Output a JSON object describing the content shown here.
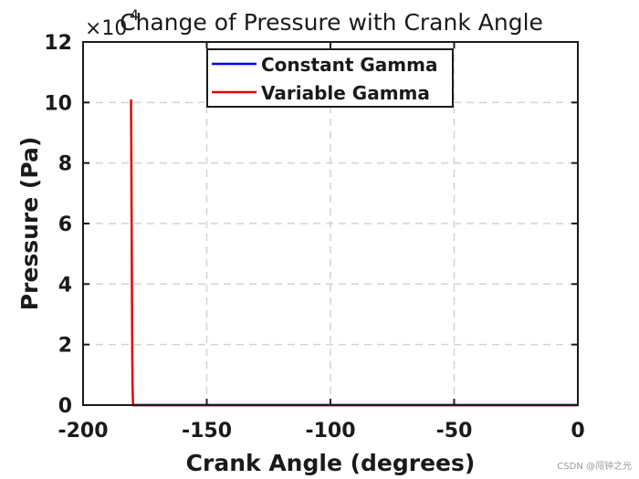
{
  "watermark": "CSDN @闯钟之光",
  "chart_data": {
    "type": "line",
    "title": "Change of Pressure with Crank Angle",
    "xlabel": "Crank Angle (degrees)",
    "ylabel": "Pressure (Pa)",
    "y_multiplier": "×10",
    "y_exponent": "4",
    "xlim": [
      -200,
      0
    ],
    "ylim": [
      0,
      12
    ],
    "xticks": [
      -200,
      -150,
      -100,
      -50,
      0
    ],
    "yticks": [
      0,
      2,
      4,
      6,
      8,
      10,
      12
    ],
    "grid": true,
    "legend_position": "top-center",
    "series": [
      {
        "name": "Constant Gamma",
        "color": "#0000e6",
        "x": [
          -180,
          0
        ],
        "y": [
          0,
          0
        ]
      },
      {
        "name": "Variable Gamma",
        "color": "#e60000",
        "x": [
          -180.6,
          -180.6,
          -180.5,
          -180.4,
          -180.3,
          -180.2,
          -180.1,
          -180,
          -179.8,
          0
        ],
        "y": [
          10.1,
          9.8,
          8.5,
          6.6,
          4.8,
          3.1,
          1.6,
          0.6,
          0,
          0
        ]
      }
    ]
  }
}
